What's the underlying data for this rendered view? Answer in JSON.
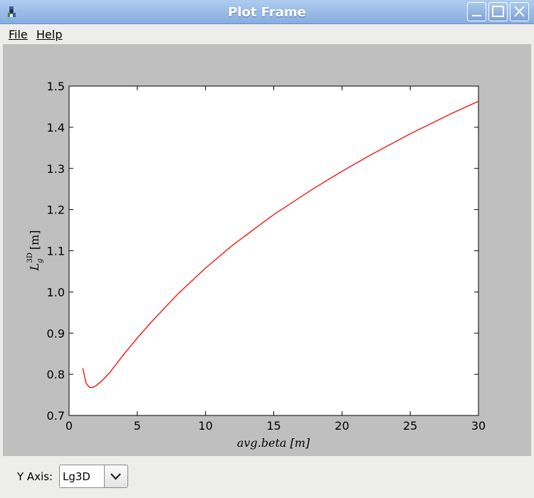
{
  "window": {
    "title": "Plot Frame"
  },
  "menu": {
    "file": "File",
    "help": "Help"
  },
  "controls": {
    "yaxis_label": "Y Axis:",
    "yaxis_value": "Lg3D"
  },
  "colors": {
    "line": "#ff0000",
    "plot_bg": "#bfbfbf",
    "titlebar": "#9dbde8"
  },
  "chart_data": {
    "type": "line",
    "xlabel": "avg.beta [m]",
    "ylabel_main": "L",
    "ylabel_sub": "g",
    "ylabel_sup": "3D",
    "ylabel_unit": "[m]",
    "xlim": [
      0,
      30
    ],
    "ylim": [
      0.7,
      1.5
    ],
    "xticks": [
      0,
      5,
      10,
      15,
      20,
      25,
      30
    ],
    "yticks": [
      0.7,
      0.8,
      0.9,
      1.0,
      1.1,
      1.2,
      1.3,
      1.4,
      1.5
    ],
    "xtick_labels": [
      "0",
      "5",
      "10",
      "15",
      "20",
      "25",
      "30"
    ],
    "ytick_labels": [
      "0.7",
      "0.8",
      "0.9",
      "1.0",
      "1.1",
      "1.2",
      "1.3",
      "1.4",
      "1.5"
    ],
    "series": [
      {
        "name": "Lg3D",
        "x": [
          1.0,
          1.25,
          1.5,
          1.75,
          2.0,
          2.5,
          3.0,
          4.0,
          5.0,
          6.0,
          8.0,
          10.0,
          12.0,
          15.0,
          18.0,
          20.0,
          22.0,
          25.0,
          28.0,
          30.0
        ],
        "y": [
          0.815,
          0.778,
          0.768,
          0.768,
          0.773,
          0.787,
          0.805,
          0.848,
          0.888,
          0.926,
          0.996,
          1.058,
          1.114,
          1.188,
          1.253,
          1.293,
          1.331,
          1.384,
          1.433,
          1.463
        ]
      }
    ]
  }
}
